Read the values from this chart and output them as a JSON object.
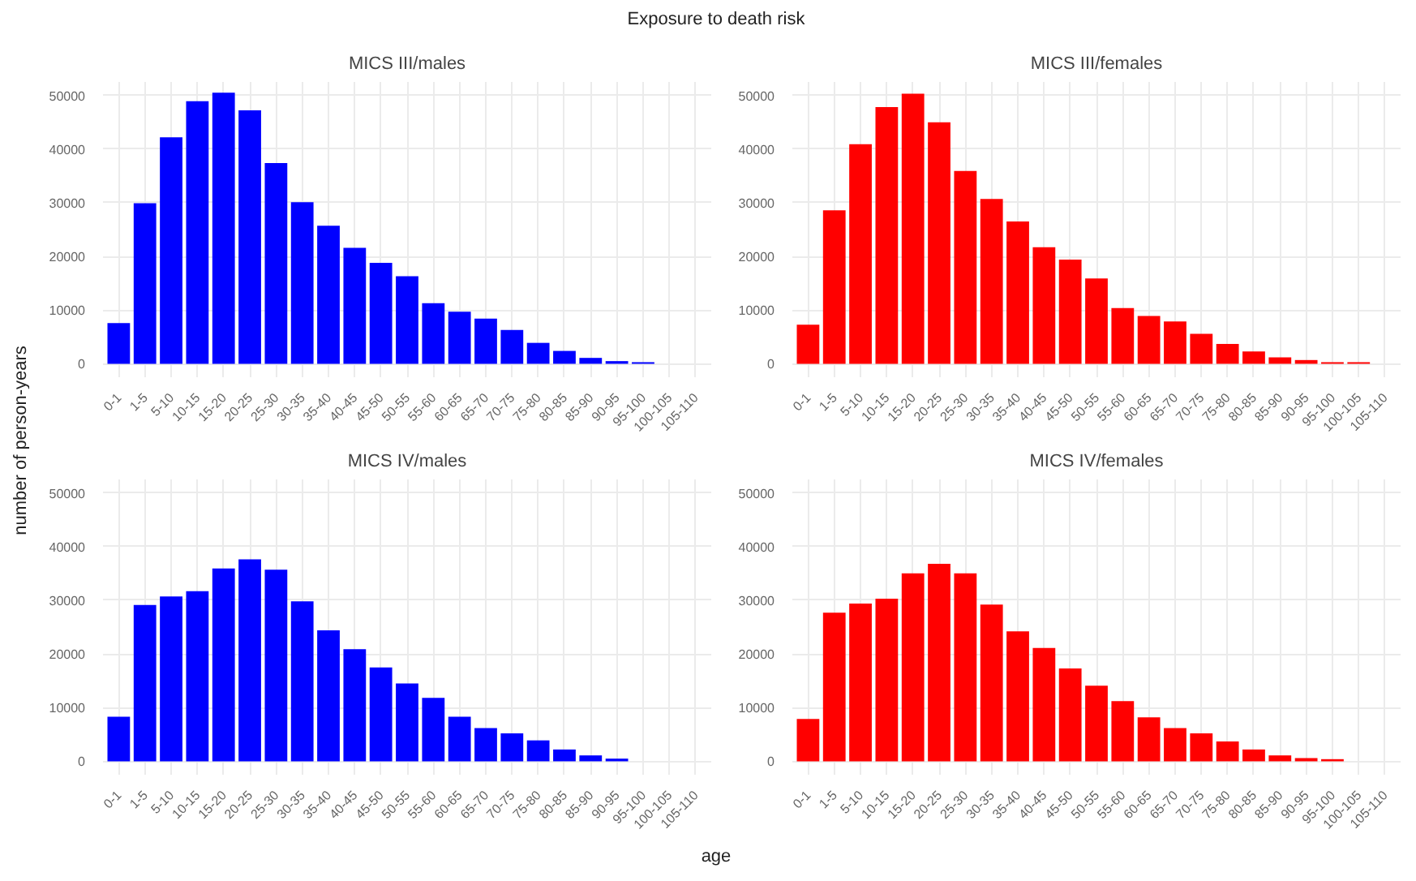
{
  "chart_data": [
    {
      "type": "other",
      "title": "Exposure to death risk",
      "xlabel": "age",
      "ylabel": "number of person-years"
    },
    {
      "type": "bar",
      "title": "MICS III/males",
      "categories": [
        "0-1",
        "1-5",
        "5-10",
        "10-15",
        "15-20",
        "20-25",
        "25-30",
        "30-35",
        "35-40",
        "40-45",
        "45-50",
        "50-55",
        "55-60",
        "60-65",
        "65-70",
        "70-75",
        "75-80",
        "80-85",
        "85-90",
        "90-95",
        "95-100",
        "100-105",
        "105-110"
      ],
      "values": [
        7600,
        29900,
        42200,
        48900,
        50500,
        47200,
        37400,
        30100,
        25700,
        21600,
        18800,
        16300,
        11300,
        9700,
        8400,
        6300,
        3900,
        2400,
        1100,
        500,
        300,
        null,
        null
      ],
      "color": "#0000ff",
      "ylim": [
        -2500,
        52500
      ],
      "yticks": [
        0,
        10000,
        20000,
        30000,
        40000,
        50000
      ],
      "grid": true
    },
    {
      "type": "bar",
      "title": "MICS III/females",
      "categories": [
        "0-1",
        "1-5",
        "5-10",
        "10-15",
        "15-20",
        "20-25",
        "25-30",
        "30-35",
        "35-40",
        "40-45",
        "45-50",
        "50-55",
        "55-60",
        "60-65",
        "65-70",
        "70-75",
        "75-80",
        "80-85",
        "85-90",
        "90-95",
        "95-100",
        "100-105",
        "105-110"
      ],
      "values": [
        7300,
        28600,
        40900,
        47800,
        50300,
        45000,
        35900,
        30700,
        26500,
        21700,
        19400,
        15900,
        10400,
        8900,
        7900,
        5600,
        3700,
        2300,
        1200,
        700,
        300,
        300,
        null
      ],
      "color": "#ff0000",
      "ylim": [
        -2500,
        52500
      ],
      "yticks": [
        0,
        10000,
        20000,
        30000,
        40000,
        50000
      ],
      "grid": true
    },
    {
      "type": "bar",
      "title": "MICS IV/males",
      "categories": [
        "0-1",
        "1-5",
        "5-10",
        "10-15",
        "15-20",
        "20-25",
        "25-30",
        "30-35",
        "35-40",
        "40-45",
        "45-50",
        "50-55",
        "55-60",
        "60-65",
        "65-70",
        "70-75",
        "75-80",
        "80-85",
        "85-90",
        "90-95",
        "95-100",
        "100-105",
        "105-110"
      ],
      "values": [
        8300,
        29100,
        30700,
        31700,
        35900,
        37600,
        35700,
        29800,
        24400,
        20900,
        17500,
        14500,
        11800,
        8300,
        6200,
        5200,
        3900,
        2200,
        1100,
        500,
        null,
        null,
        null
      ],
      "color": "#0000ff",
      "ylim": [
        -2500,
        52500
      ],
      "yticks": [
        0,
        10000,
        20000,
        30000,
        40000,
        50000
      ],
      "grid": true
    },
    {
      "type": "bar",
      "title": "MICS IV/females",
      "categories": [
        "0-1",
        "1-5",
        "5-10",
        "10-15",
        "15-20",
        "20-25",
        "25-30",
        "30-35",
        "35-40",
        "40-45",
        "45-50",
        "50-55",
        "55-60",
        "60-65",
        "65-70",
        "70-75",
        "75-80",
        "80-85",
        "85-90",
        "90-95",
        "95-100",
        "100-105",
        "105-110"
      ],
      "values": [
        7900,
        27700,
        29400,
        30300,
        35000,
        36800,
        35000,
        29200,
        24200,
        21100,
        17300,
        14100,
        11200,
        8200,
        6200,
        5200,
        3700,
        2200,
        1100,
        600,
        400,
        null,
        null
      ],
      "color": "#ff0000",
      "ylim": [
        -2500,
        52500
      ],
      "yticks": [
        0,
        10000,
        20000,
        30000,
        40000,
        50000
      ],
      "grid": true
    }
  ]
}
